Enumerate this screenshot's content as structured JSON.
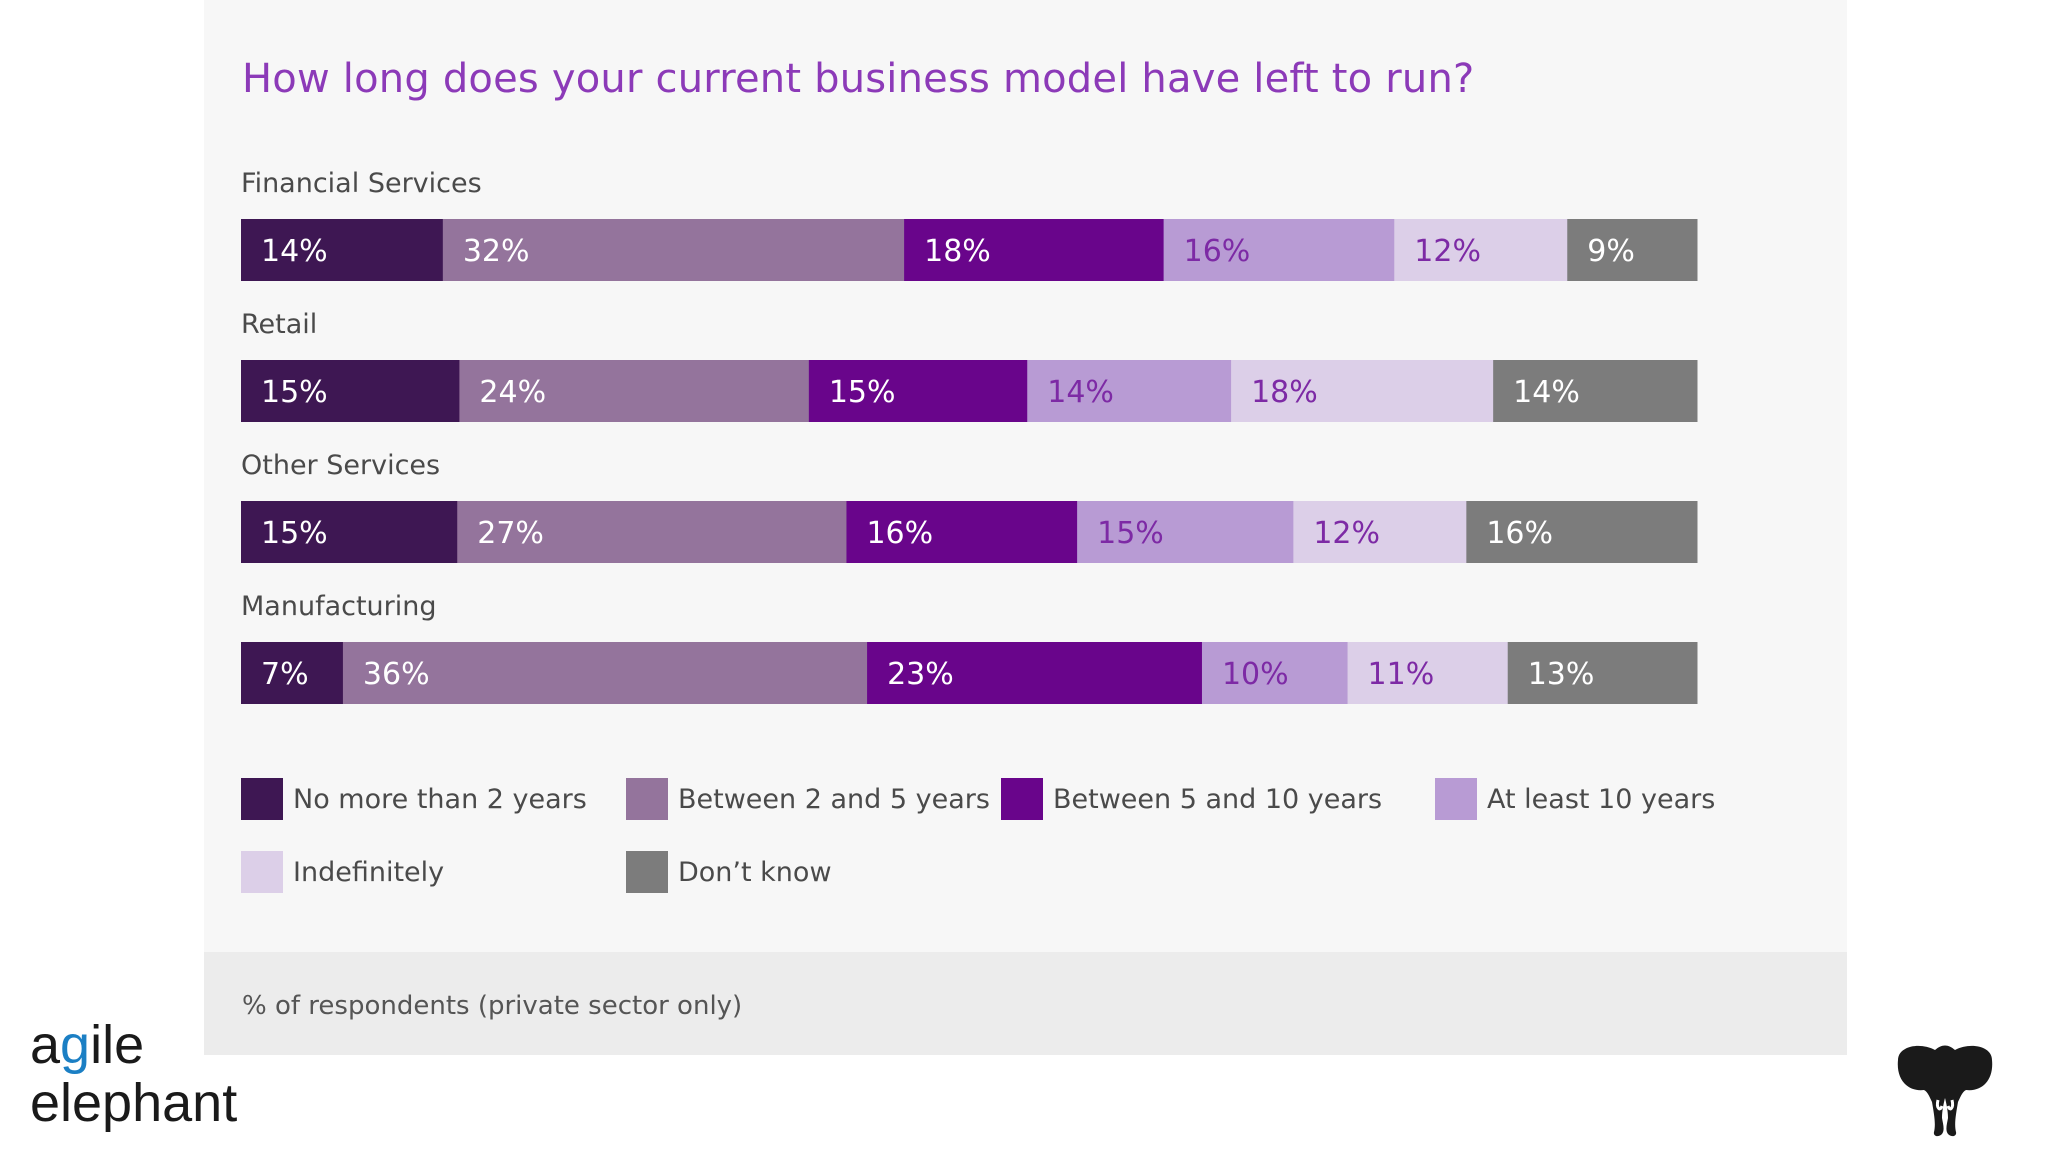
{
  "chart_data": {
    "type": "bar",
    "orientation": "horizontal",
    "stacked": true,
    "title": "How long does your current business model have left to run?",
    "categories": [
      "Financial Services",
      "Retail",
      "Other Services",
      "Manufacturing"
    ],
    "series": [
      {
        "name": "No more than 2 years",
        "color": "#3e1753",
        "label_color": "#ffffff",
        "values": [
          14,
          15,
          15,
          7
        ]
      },
      {
        "name": "Between 2 and 5 years",
        "color": "#94749c",
        "label_color": "#ffffff",
        "values": [
          32,
          24,
          27,
          36
        ]
      },
      {
        "name": "Between 5 and 10 years",
        "color": "#69058b",
        "label_color": "#ffffff",
        "values": [
          18,
          15,
          16,
          23
        ]
      },
      {
        "name": "At least 10 years",
        "color": "#b89bd4",
        "label_color": "#7d2aa5",
        "values": [
          16,
          14,
          15,
          10
        ]
      },
      {
        "name": "Indefinitely",
        "color": "#dccfe8",
        "label_color": "#7d2aa5",
        "values": [
          12,
          18,
          12,
          11
        ]
      },
      {
        "name": "Don’t know",
        "color": "#7c7c7c",
        "label_color": "#ffffff",
        "values": [
          9,
          14,
          16,
          13
        ]
      }
    ],
    "value_suffix": "%",
    "legend_position": "bottom",
    "footnote": "% of respondents (private sector only)"
  },
  "brand": {
    "logo_line1_a": "a",
    "logo_line1_g": "g",
    "logo_line1_rest": "ile",
    "logo_line2": "elephant"
  }
}
